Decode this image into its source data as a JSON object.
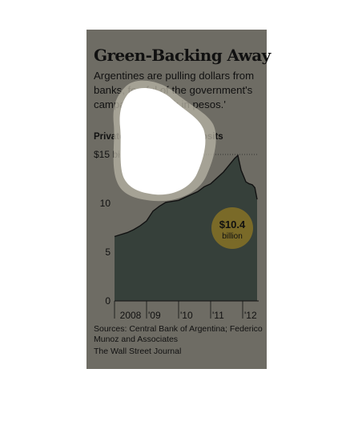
{
  "chart_data": {
    "type": "area",
    "title": "Green-Backing Away",
    "subtitle": "Argentines are pulling dollars from banks, fearful of the government's campaign to 'think in pesos.'",
    "series_title": "Private-sector dollar deposits",
    "ylim": [
      0,
      15
    ],
    "y_ticks": [
      {
        "value": 15,
        "label": "$15 billion"
      },
      {
        "value": 10,
        "label": "10"
      },
      {
        "value": 5,
        "label": "5"
      },
      {
        "value": 0,
        "label": "0"
      }
    ],
    "x_ticks": [
      "2008",
      "'09",
      "'10",
      "'11",
      "'12"
    ],
    "x_range": [
      2008.0,
      2012.5
    ],
    "series": [
      {
        "x": [
          2008.0,
          2008.2,
          2008.4,
          2008.6,
          2008.8,
          2009.0,
          2009.2,
          2009.4,
          2009.6,
          2009.8,
          2010.0,
          2010.2,
          2010.4,
          2010.6,
          2010.8,
          2011.0,
          2011.2,
          2011.4,
          2011.6,
          2011.75,
          2011.85,
          2011.95,
          2012.1,
          2012.2,
          2012.3,
          2012.38,
          2012.45
        ],
        "values": [
          6.6,
          6.8,
          7.0,
          7.3,
          7.7,
          8.2,
          9.2,
          9.7,
          10.1,
          10.2,
          10.3,
          10.6,
          10.9,
          11.2,
          11.7,
          12.0,
          12.6,
          13.2,
          14.0,
          14.6,
          14.9,
          13.4,
          12.2,
          12.0,
          11.9,
          11.6,
          10.4
        ]
      }
    ],
    "annotation": {
      "value": "$10.4",
      "unit": "billion"
    },
    "grid": false,
    "colors": {
      "background": "#6e6c64",
      "area": "#36403a",
      "line": "#111111",
      "annotation_circle": "#7a6a28"
    }
  },
  "source": "Sources: Central Bank of Argentina; Federico Munoz and Associates",
  "credit": "The Wall Street Journal"
}
